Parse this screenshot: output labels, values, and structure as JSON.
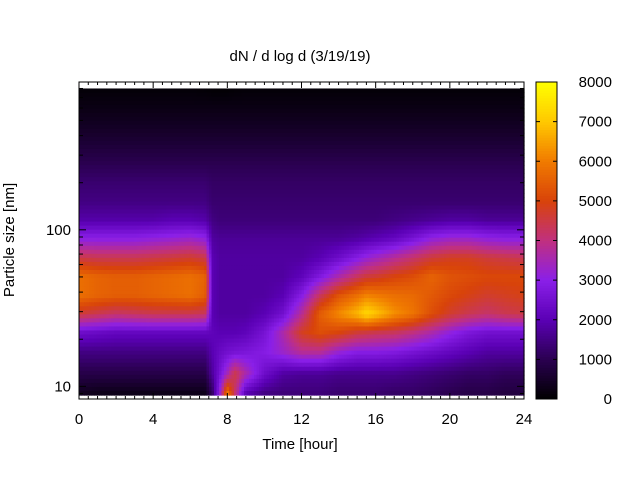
{
  "chart_data": {
    "type": "heatmap",
    "title": "dN / d log d (3/19/19)",
    "xlabel": "Time [hour]",
    "ylabel": "Particle size [nm]",
    "xlim": [
      0,
      24
    ],
    "x_ticks": [
      0,
      4,
      8,
      12,
      16,
      20,
      24
    ],
    "y_scale": "log",
    "ylim_nm": [
      8.3,
      880
    ],
    "y_tick_labels": [
      "10",
      "100"
    ],
    "y_tick_values": [
      10,
      100
    ],
    "colorbar": {
      "range": [
        0,
        8000
      ],
      "ticks": [
        0,
        1000,
        2000,
        3000,
        4000,
        5000,
        6000,
        7000,
        8000
      ],
      "palette": [
        "#000000",
        "#2a0050",
        "#5a00b4",
        "#8a1fe8",
        "#c03080",
        "#d8430a",
        "#f07a00",
        "#ffc800",
        "#ffff00"
      ]
    },
    "rows_diameter_nm": [
      9.0,
      12.0,
      16.5,
      22.0,
      29.0,
      38.0,
      50.0,
      66.0,
      88.0,
      115.0,
      150.0,
      200.0,
      265.0,
      350.0,
      460.0,
      600.0,
      780.0
    ],
    "columns_time_h": [
      0,
      1,
      2,
      3,
      4,
      5,
      6,
      6.8,
      7.2,
      7.6,
      8.0,
      8.4,
      9,
      10,
      11,
      12,
      13,
      14,
      15,
      15.5,
      16,
      17,
      18,
      19,
      20,
      21,
      22,
      23,
      24
    ],
    "values": [
      [
        400,
        300,
        300,
        300,
        300,
        300,
        300,
        300,
        1200,
        3200,
        6000,
        4200,
        2000,
        1500,
        1400,
        1400,
        1400,
        1300,
        1300,
        1300,
        1300,
        1200,
        1200,
        1100,
        1000,
        900,
        900,
        800,
        800
      ],
      [
        900,
        900,
        900,
        900,
        900,
        900,
        900,
        900,
        1800,
        2600,
        3500,
        4500,
        3600,
        2400,
        1800,
        1700,
        1700,
        1600,
        1600,
        1600,
        1600,
        1600,
        1500,
        1400,
        1300,
        1200,
        1200,
        1100,
        1100
      ],
      [
        1500,
        1500,
        1500,
        1500,
        1500,
        1500,
        1500,
        1500,
        2000,
        2300,
        2500,
        2600,
        2700,
        2900,
        3300,
        3800,
        3800,
        3200,
        2900,
        2900,
        2900,
        2800,
        2600,
        2400,
        2200,
        2000,
        1800,
        1800,
        1800
      ],
      [
        2400,
        2300,
        2200,
        2200,
        2200,
        2200,
        2200,
        2200,
        2100,
        2000,
        2000,
        2000,
        2100,
        2600,
        3600,
        4800,
        5200,
        5000,
        4600,
        4500,
        4400,
        4300,
        4000,
        3600,
        3100,
        2700,
        2500,
        2500,
        2500
      ],
      [
        4600,
        4400,
        4200,
        4300,
        4400,
        4400,
        4400,
        4300,
        2000,
        1800,
        1800,
        1800,
        1800,
        2000,
        2500,
        3800,
        5500,
        6200,
        6800,
        7300,
        7000,
        6300,
        5900,
        5200,
        4700,
        4400,
        4200,
        4400,
        4500
      ],
      [
        5800,
        5600,
        5500,
        5500,
        5600,
        5700,
        5800,
        5500,
        2000,
        1800,
        1800,
        1800,
        1800,
        1800,
        2000,
        2900,
        4300,
        5300,
        5800,
        6100,
        6000,
        5800,
        5700,
        5400,
        5100,
        4900,
        4700,
        4800,
        4900
      ],
      [
        5800,
        5600,
        5500,
        5500,
        5600,
        5700,
        5800,
        5600,
        2000,
        1800,
        1800,
        1800,
        1800,
        1800,
        1800,
        2100,
        2800,
        3600,
        4300,
        4600,
        4700,
        5000,
        5200,
        5600,
        5300,
        5200,
        5100,
        5100,
        5100
      ],
      [
        4500,
        4400,
        4400,
        4400,
        4500,
        4600,
        4700,
        4500,
        2000,
        1800,
        1800,
        1800,
        1800,
        1800,
        1800,
        1800,
        2000,
        2400,
        2900,
        3200,
        3400,
        3800,
        4200,
        4600,
        4800,
        4800,
        4600,
        4500,
        4400
      ],
      [
        3000,
        3000,
        3000,
        3000,
        3100,
        3200,
        3300,
        3100,
        1800,
        1700,
        1700,
        1700,
        1700,
        1700,
        1700,
        1700,
        1700,
        1700,
        1800,
        1900,
        2000,
        2200,
        2600,
        3100,
        3300,
        3300,
        3100,
        3000,
        3000
      ],
      [
        1900,
        1900,
        1900,
        1900,
        1900,
        2000,
        2000,
        1900,
        1500,
        1400,
        1400,
        1400,
        1400,
        1400,
        1400,
        1400,
        1400,
        1400,
        1400,
        1400,
        1400,
        1500,
        1600,
        1700,
        1800,
        1800,
        1700,
        1700,
        1700
      ],
      [
        1500,
        1500,
        1500,
        1500,
        1500,
        1500,
        1500,
        1500,
        1300,
        1300,
        1300,
        1300,
        1300,
        1300,
        1300,
        1300,
        1300,
        1300,
        1300,
        1300,
        1300,
        1300,
        1300,
        1300,
        1300,
        1300,
        1300,
        1300,
        1300
      ],
      [
        1300,
        1300,
        1300,
        1300,
        1300,
        1300,
        1300,
        1300,
        1200,
        1200,
        1200,
        1200,
        1200,
        1200,
        1200,
        1200,
        1200,
        1200,
        1200,
        1200,
        1200,
        1200,
        1200,
        1200,
        1200,
        1200,
        1200,
        1200,
        1200
      ],
      [
        1000,
        1000,
        1000,
        1000,
        1000,
        1000,
        1000,
        1000,
        1000,
        1000,
        1000,
        1000,
        1000,
        1000,
        1000,
        1000,
        1000,
        1000,
        1000,
        1000,
        1000,
        1000,
        1000,
        1000,
        1000,
        1000,
        1000,
        1000,
        1000
      ],
      [
        700,
        700,
        700,
        700,
        700,
        700,
        700,
        700,
        700,
        700,
        700,
        700,
        700,
        700,
        700,
        700,
        700,
        700,
        700,
        700,
        700,
        700,
        700,
        700,
        700,
        700,
        700,
        700,
        700
      ],
      [
        450,
        450,
        450,
        450,
        450,
        450,
        450,
        450,
        450,
        450,
        450,
        450,
        450,
        450,
        450,
        450,
        450,
        450,
        450,
        450,
        450,
        450,
        450,
        450,
        450,
        450,
        450,
        450,
        450
      ],
      [
        250,
        250,
        250,
        250,
        250,
        250,
        250,
        250,
        250,
        250,
        250,
        250,
        250,
        250,
        250,
        250,
        250,
        250,
        250,
        250,
        250,
        250,
        250,
        250,
        250,
        250,
        250,
        250,
        250
      ],
      [
        100,
        100,
        100,
        100,
        100,
        100,
        100,
        80,
        60,
        60,
        60,
        80,
        100,
        100,
        100,
        100,
        100,
        100,
        100,
        100,
        100,
        100,
        100,
        100,
        100,
        100,
        100,
        100,
        100
      ]
    ]
  }
}
